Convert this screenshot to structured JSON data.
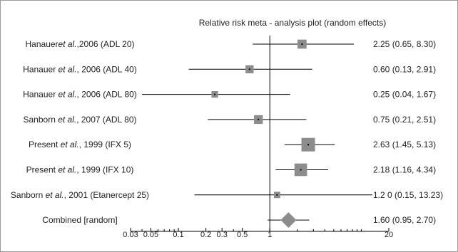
{
  "chart_data": {
    "type": "forest",
    "title": "Relative risk meta - analysis plot (random effects)",
    "scale": "log",
    "xlim": [
      0.03,
      20
    ],
    "reference_line": 1,
    "x_tick_labels": [
      "0.03",
      "0.05",
      "0.1",
      "0.2",
      "0.3",
      "0.5",
      "1",
      "20"
    ],
    "x_tick_values": [
      0.03,
      0.05,
      0.1,
      0.2,
      0.3,
      0.5,
      1,
      20
    ],
    "minor_ticks": [
      0.04,
      0.06,
      0.07,
      0.08,
      0.09,
      0.4,
      2,
      3,
      4,
      5,
      6,
      7,
      8,
      9,
      10
    ],
    "studies": [
      {
        "pre": "Hanauer",
        "italic": "et al.",
        "post": ",2006 (ADL 20)",
        "rr": 2.25,
        "lo": 0.65,
        "hi": 8.3,
        "weight": 0.55,
        "ci_text": "2.25 (0.65, 8.30)"
      },
      {
        "pre": "Hanauer ",
        "italic": "et al.",
        "post": ", 2006 (ADL 40)",
        "rr": 0.6,
        "lo": 0.13,
        "hi": 2.91,
        "weight": 0.45,
        "ci_text": "0.60 (0.13, 2.91)"
      },
      {
        "pre": "Hanauer ",
        "italic": "et al.",
        "post": ", 2006 (ADL 80)",
        "rr": 0.25,
        "lo": 0.04,
        "hi": 1.67,
        "weight": 0.3,
        "ci_text": "0.25 (0.04, 1.67)"
      },
      {
        "pre": "Sanborn ",
        "italic": "et al.",
        "post": ", 2007 (ADL 80)",
        "rr": 0.75,
        "lo": 0.21,
        "hi": 2.51,
        "weight": 0.52,
        "ci_text": "0.75 (0.21, 2.51)"
      },
      {
        "pre": "Present ",
        "italic": "et al.",
        "post": ", 1999 (IFX 5)",
        "rr": 2.63,
        "lo": 1.45,
        "hi": 5.13,
        "weight": 1.0,
        "ci_text": "2.63 (1.45, 5.13)"
      },
      {
        "pre": "Present ",
        "italic": "et al.",
        "post": ", 1999 (IFX 10)",
        "rr": 2.18,
        "lo": 1.16,
        "hi": 4.34,
        "weight": 0.9,
        "ci_text": "2.18 (1.16, 4.34)"
      },
      {
        "pre": "Sanborn ",
        "italic": "et al.",
        "post": ", 2001 (Etanercept 25)",
        "rr": 1.2,
        "lo": 0.15,
        "hi": 13.23,
        "weight": 0.28,
        "ci_text": "1.2 0 (0.15, 13.23)"
      }
    ],
    "combined": {
      "label": "Combined [random]",
      "rr": 1.6,
      "lo": 0.95,
      "hi": 2.7,
      "ci_text": "1.60 (0.95, 2.70)"
    },
    "colors": {
      "marker": "#8c8c8c",
      "line": "#000000",
      "text": "#222222"
    }
  }
}
